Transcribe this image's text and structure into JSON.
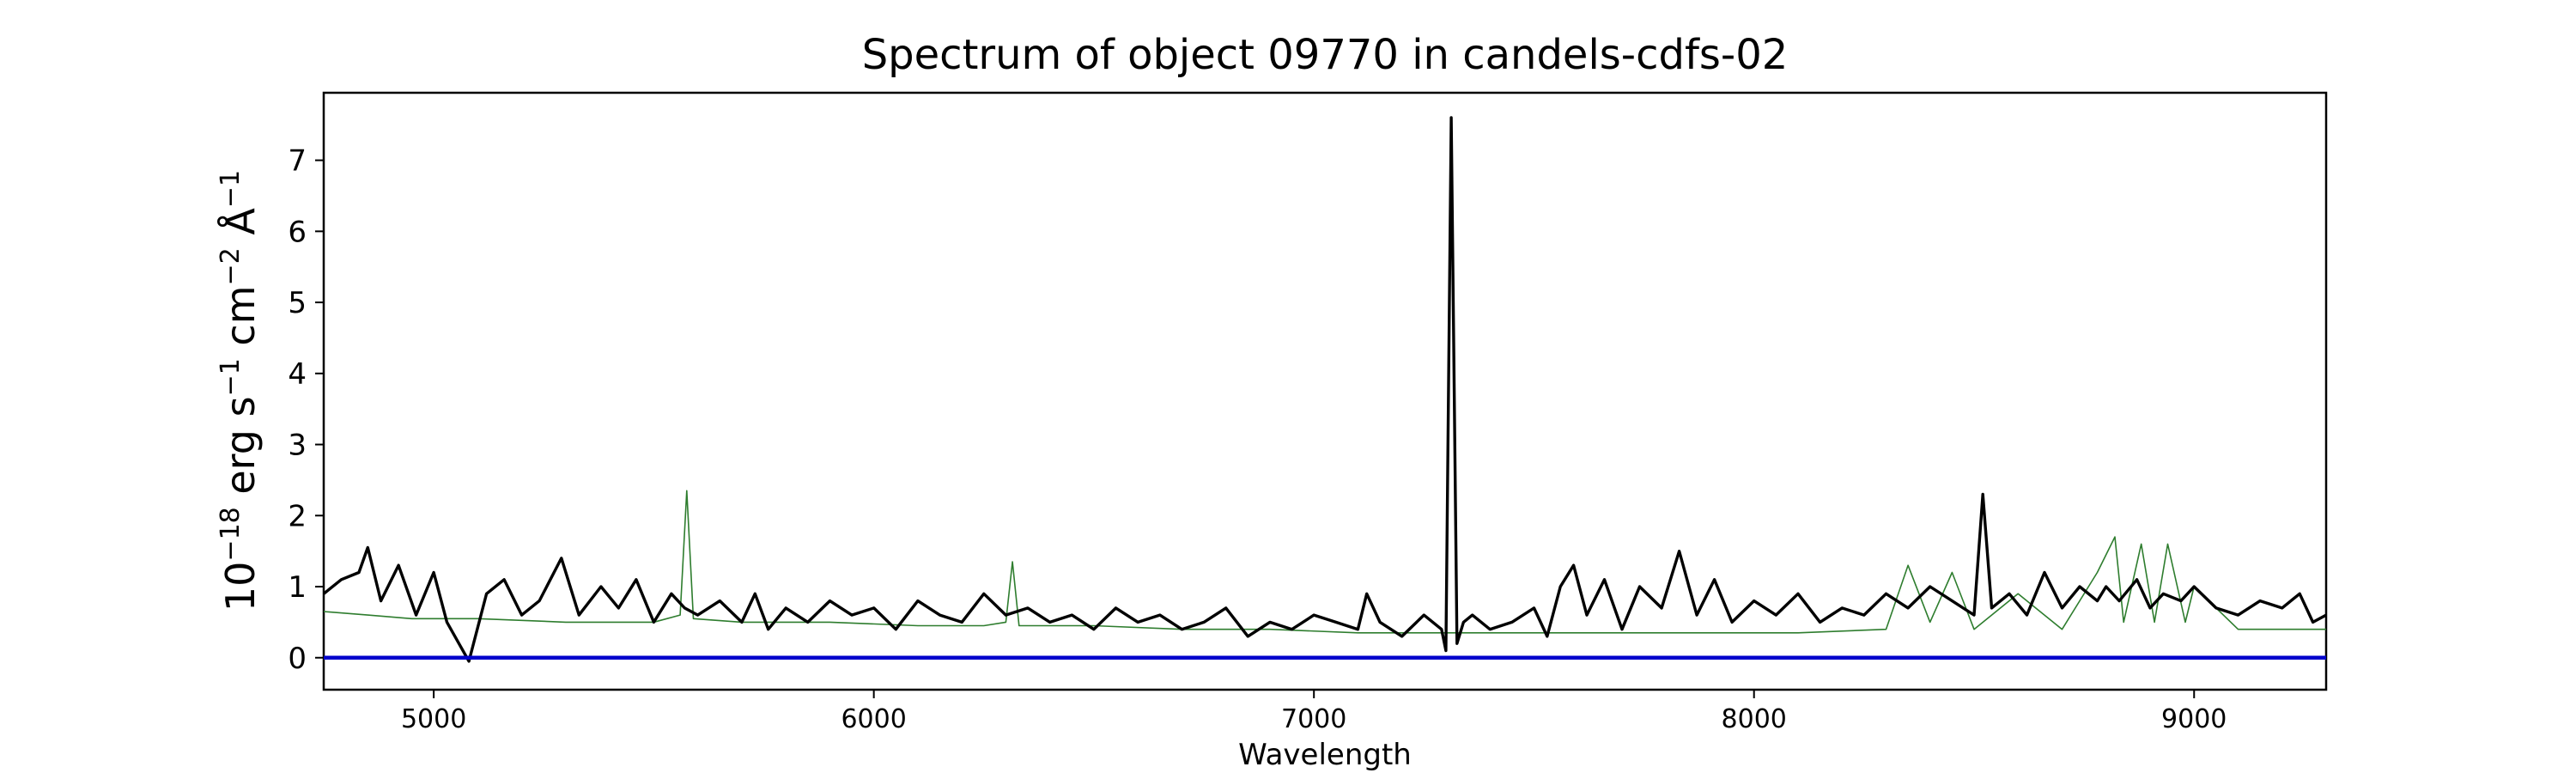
{
  "chart_data": {
    "type": "line",
    "title": "Spectrum of object 09770 in candels-cdfs-02",
    "xlabel": "Wavelength",
    "ylabel": {
      "base": "10",
      "base_exp": "−18",
      "unit1": "erg s",
      "unit1_exp": "−1",
      "unit2": "cm",
      "unit2_exp": "−2",
      "unit3": "Å",
      "unit3_exp": "−1"
    },
    "xlim": [
      4750,
      9300
    ],
    "ylim": [
      -0.45,
      7.95
    ],
    "x_ticks": [
      5000,
      6000,
      7000,
      8000,
      9000
    ],
    "y_ticks": [
      0,
      1,
      2,
      3,
      4,
      5,
      6,
      7
    ],
    "grid": false,
    "series": [
      {
        "role": "flux",
        "color": "#000000",
        "x": [
          4750,
          4790,
          4830,
          4850,
          4880,
          4920,
          4960,
          5000,
          5030,
          5080,
          5120,
          5160,
          5200,
          5240,
          5290,
          5330,
          5380,
          5420,
          5460,
          5500,
          5540,
          5570,
          5600,
          5650,
          5700,
          5730,
          5760,
          5800,
          5850,
          5900,
          5950,
          6000,
          6050,
          6100,
          6150,
          6200,
          6250,
          6300,
          6350,
          6400,
          6450,
          6500,
          6550,
          6600,
          6650,
          6700,
          6750,
          6800,
          6850,
          6900,
          6950,
          7000,
          7050,
          7100,
          7120,
          7150,
          7200,
          7250,
          7290,
          7300,
          7312,
          7325,
          7340,
          7360,
          7400,
          7450,
          7500,
          7530,
          7560,
          7590,
          7620,
          7660,
          7700,
          7740,
          7790,
          7830,
          7870,
          7910,
          7950,
          8000,
          8050,
          8100,
          8150,
          8200,
          8250,
          8300,
          8350,
          8400,
          8450,
          8500,
          8520,
          8540,
          8580,
          8620,
          8660,
          8700,
          8740,
          8780,
          8800,
          8830,
          8870,
          8900,
          8930,
          8970,
          9000,
          9050,
          9100,
          9150,
          9200,
          9240,
          9270,
          9300
        ],
        "y": [
          0.9,
          1.1,
          1.2,
          1.55,
          0.8,
          1.3,
          0.6,
          1.2,
          0.5,
          -0.05,
          0.9,
          1.1,
          0.6,
          0.8,
          1.4,
          0.6,
          1.0,
          0.7,
          1.1,
          0.5,
          0.9,
          0.7,
          0.6,
          0.8,
          0.5,
          0.9,
          0.4,
          0.7,
          0.5,
          0.8,
          0.6,
          0.7,
          0.4,
          0.8,
          0.6,
          0.5,
          0.9,
          0.6,
          0.7,
          0.5,
          0.6,
          0.4,
          0.7,
          0.5,
          0.6,
          0.4,
          0.5,
          0.7,
          0.3,
          0.5,
          0.4,
          0.6,
          0.5,
          0.4,
          0.9,
          0.5,
          0.3,
          0.6,
          0.4,
          0.1,
          7.6,
          0.2,
          0.5,
          0.6,
          0.4,
          0.5,
          0.7,
          0.3,
          1.0,
          1.3,
          0.6,
          1.1,
          0.4,
          1.0,
          0.7,
          1.5,
          0.6,
          1.1,
          0.5,
          0.8,
          0.6,
          0.9,
          0.5,
          0.7,
          0.6,
          0.9,
          0.7,
          1.0,
          0.8,
          0.6,
          2.3,
          0.7,
          0.9,
          0.6,
          1.2,
          0.7,
          1.0,
          0.8,
          1.0,
          0.8,
          1.1,
          0.7,
          0.9,
          0.8,
          1.0,
          0.7,
          0.6,
          0.8,
          0.7,
          0.9,
          0.5,
          0.6
        ]
      },
      {
        "role": "model",
        "color": "#2e7d2e",
        "x": [
          4750,
          4850,
          4950,
          5100,
          5300,
          5500,
          5560,
          5575,
          5590,
          5700,
          5900,
          6100,
          6250,
          6300,
          6315,
          6330,
          6500,
          6700,
          6900,
          7100,
          7300,
          7500,
          7700,
          7900,
          8100,
          8300,
          8350,
          8400,
          8450,
          8500,
          8600,
          8700,
          8780,
          8820,
          8840,
          8880,
          8910,
          8940,
          8980,
          9000,
          9100,
          9200,
          9300
        ],
        "y": [
          0.65,
          0.6,
          0.55,
          0.55,
          0.5,
          0.5,
          0.6,
          2.35,
          0.55,
          0.5,
          0.5,
          0.45,
          0.45,
          0.5,
          1.35,
          0.45,
          0.45,
          0.4,
          0.4,
          0.35,
          0.35,
          0.35,
          0.35,
          0.35,
          0.35,
          0.4,
          1.3,
          0.5,
          1.2,
          0.4,
          0.9,
          0.4,
          1.2,
          1.7,
          0.5,
          1.6,
          0.5,
          1.6,
          0.5,
          1.0,
          0.4,
          0.4,
          0.4
        ]
      },
      {
        "role": "zero",
        "color": "#0000cc",
        "x": [
          4750,
          9300
        ],
        "y": [
          0,
          0
        ]
      }
    ]
  }
}
